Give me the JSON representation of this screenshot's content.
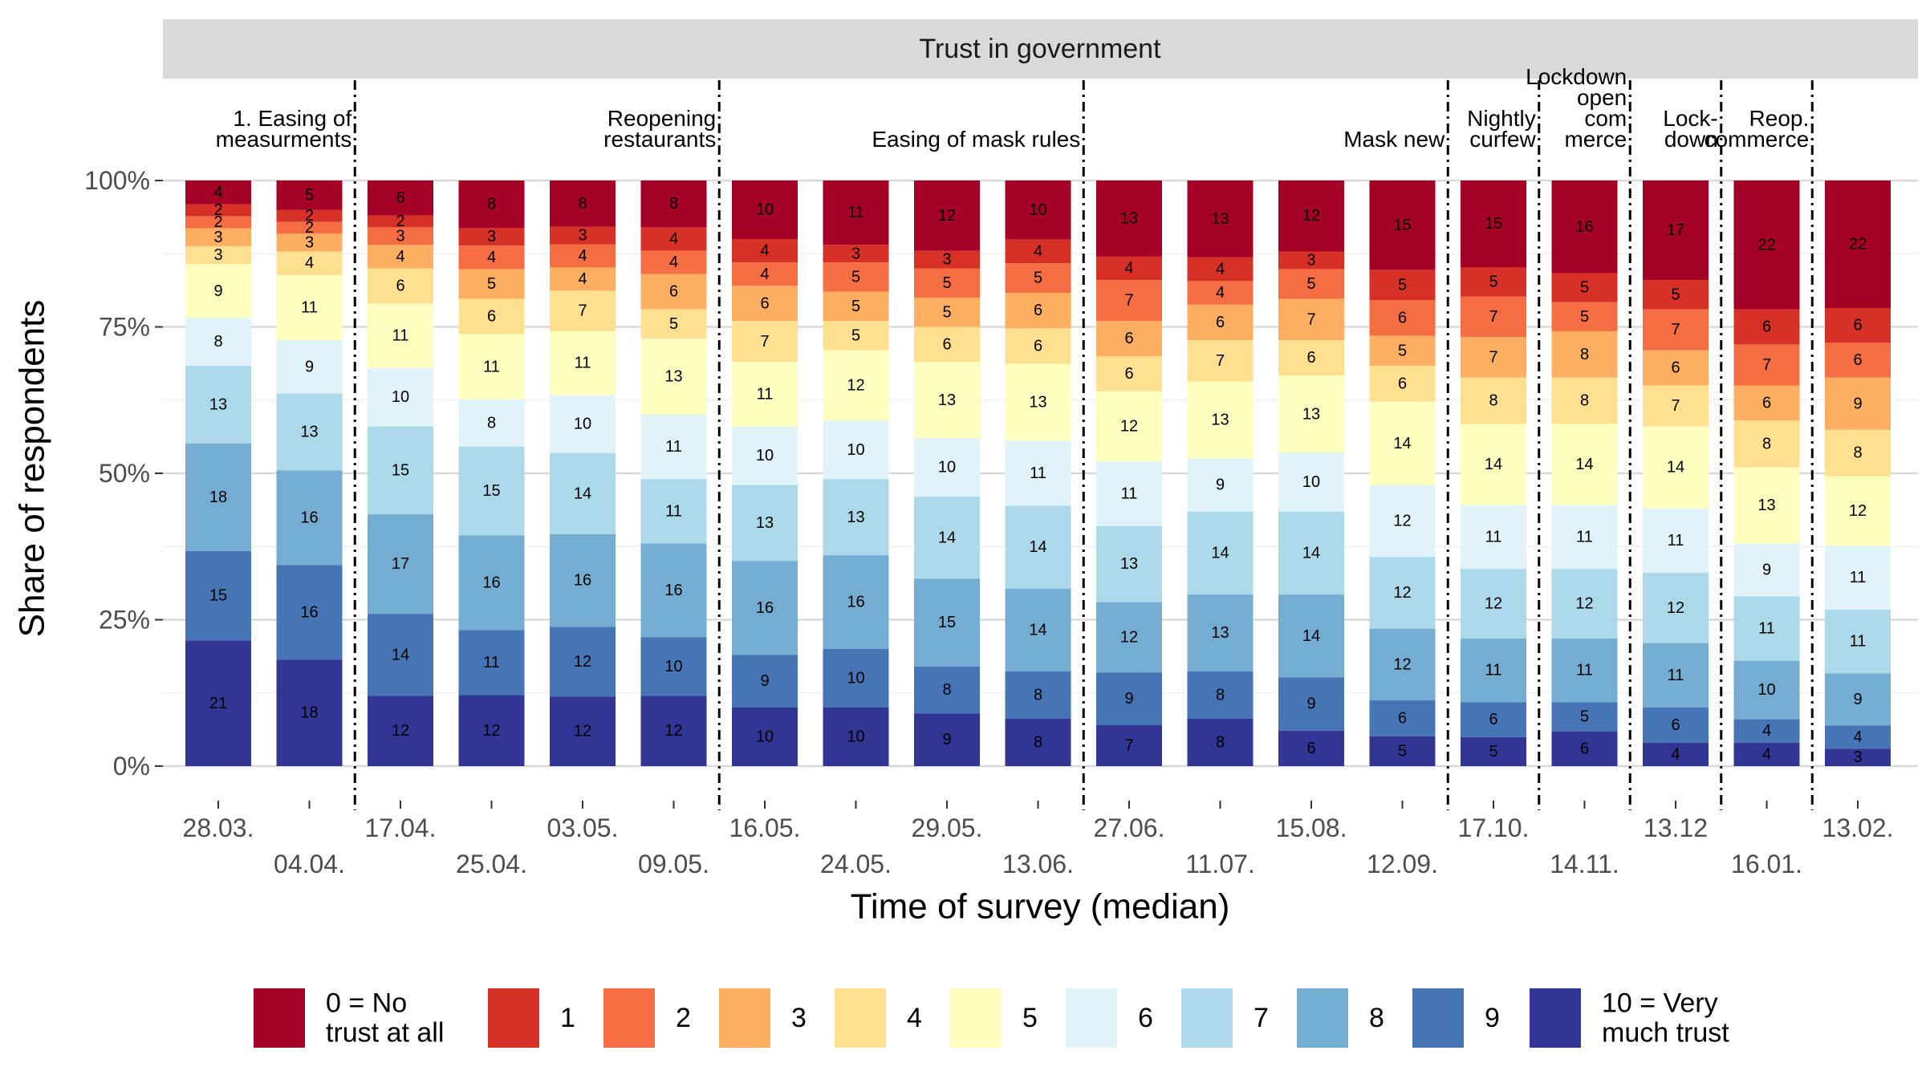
{
  "chart_data": {
    "type": "bar",
    "stacked": true,
    "title": "Trust in government",
    "xlabel": "Time of survey (median)",
    "ylabel": "Share of respondents",
    "ylim": [
      0,
      100
    ],
    "yticks": [
      "0%",
      "25%",
      "50%",
      "75%",
      "100%"
    ],
    "categories": [
      "28.03.",
      "04.04.",
      "17.04.",
      "25.04.",
      "03.05.",
      "09.05.",
      "16.05.",
      "24.05.",
      "29.05.",
      "13.06.",
      "27.06.",
      "11.07.",
      "15.08.",
      "12.09.",
      "17.10.",
      "14.11.",
      "13.12",
      "16.01.",
      "13.02."
    ],
    "category_row": [
      0,
      1,
      0,
      1,
      0,
      1,
      0,
      1,
      0,
      1,
      0,
      1,
      0,
      1,
      0,
      1,
      0,
      1,
      0
    ],
    "level_names": [
      "0 = No trust at all",
      "1",
      "2",
      "3",
      "4",
      "5",
      "6",
      "7",
      "8",
      "9",
      "10 = Very much trust"
    ],
    "level_colors": [
      "#a50026",
      "#d73027",
      "#f46d43",
      "#fdae61",
      "#fee090",
      "#ffffbf",
      "#e0f3f8",
      "#abd9e9",
      "#74add1",
      "#4575b4",
      "#313695"
    ],
    "values": [
      [
        4,
        2,
        2,
        3,
        3,
        9,
        8,
        13,
        18,
        15,
        21
      ],
      [
        5,
        2,
        2,
        3,
        4,
        11,
        9,
        13,
        16,
        16,
        18
      ],
      [
        6,
        2,
        3,
        4,
        6,
        11,
        10,
        15,
        17,
        14,
        12
      ],
      [
        8,
        3,
        4,
        5,
        6,
        11,
        8,
        15,
        16,
        11,
        12
      ],
      [
        8,
        3,
        4,
        4,
        7,
        11,
        10,
        14,
        16,
        12,
        12
      ],
      [
        8,
        4,
        4,
        6,
        5,
        13,
        11,
        11,
        16,
        10,
        12
      ],
      [
        10,
        4,
        4,
        6,
        7,
        11,
        10,
        13,
        16,
        9,
        10
      ],
      [
        11,
        3,
        5,
        5,
        5,
        12,
        10,
        13,
        16,
        10,
        10
      ],
      [
        12,
        3,
        5,
        5,
        6,
        13,
        10,
        14,
        15,
        8,
        9
      ],
      [
        10,
        4,
        5,
        6,
        6,
        13,
        11,
        14,
        14,
        8,
        8
      ],
      [
        13,
        4,
        7,
        6,
        6,
        12,
        11,
        13,
        12,
        9,
        7
      ],
      [
        13,
        4,
        4,
        6,
        7,
        13,
        9,
        14,
        13,
        8,
        8
      ],
      [
        12,
        3,
        5,
        7,
        6,
        13,
        10,
        14,
        14,
        9,
        6
      ],
      [
        15,
        5,
        6,
        5,
        6,
        14,
        12,
        12,
        12,
        6,
        5
      ],
      [
        15,
        5,
        7,
        7,
        8,
        14,
        11,
        12,
        11,
        6,
        5
      ],
      [
        16,
        5,
        5,
        8,
        8,
        14,
        11,
        12,
        11,
        5,
        6
      ],
      [
        17,
        5,
        7,
        6,
        7,
        14,
        11,
        12,
        11,
        6,
        4
      ],
      [
        22,
        6,
        7,
        6,
        8,
        13,
        9,
        11,
        10,
        4,
        4
      ],
      [
        22,
        6,
        6,
        9,
        8,
        12,
        11,
        11,
        9,
        4,
        3
      ]
    ],
    "events": [
      {
        "after_index": 1,
        "lines": [
          "1. Easing of",
          "measurments"
        ]
      },
      {
        "after_index": 5,
        "lines": [
          "Reopening",
          "restaurants"
        ]
      },
      {
        "after_index": 9,
        "lines": [
          "Easing of mask rules"
        ]
      },
      {
        "after_index": 13,
        "lines": [
          "Mask new"
        ]
      },
      {
        "after_index": 14,
        "lines": [
          "Nightly",
          "curfew"
        ]
      },
      {
        "after_index": 15,
        "lines": [
          "Lockdown",
          "open",
          "com",
          "merce"
        ]
      },
      {
        "after_index": 16,
        "lines": [
          "Lock-",
          "down"
        ]
      },
      {
        "after_index": 17,
        "lines": [
          "Reop.",
          "commerce"
        ]
      }
    ],
    "legend_position": "bottom",
    "grid": true
  }
}
